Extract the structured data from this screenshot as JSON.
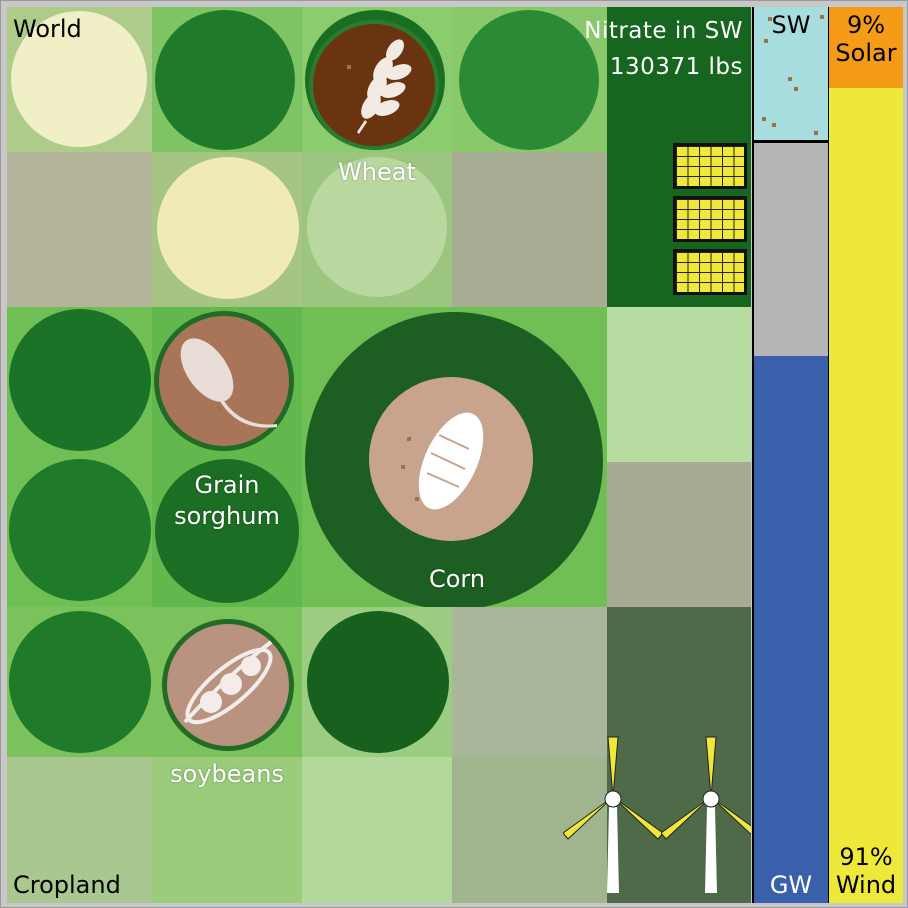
{
  "world_label": "World",
  "cropland_label": "Cropland",
  "nitrate": {
    "title": "Nitrate in SW",
    "value": "130371 lbs"
  },
  "crops": [
    {
      "name": "wheat",
      "label": "Wheat",
      "icon": "wheat-icon"
    },
    {
      "name": "sorghum",
      "label": "Grain\nsorghum",
      "icon": "sorghum-icon"
    },
    {
      "name": "corn",
      "label": "Corn",
      "icon": "corn-icon"
    },
    {
      "name": "soybeans",
      "label": "soybeans",
      "icon": "soybean-icon"
    }
  ],
  "water": {
    "sw_label": "SW",
    "gw_label": "GW"
  },
  "energy": {
    "solar_percent": 9,
    "solar_pct_text": "9%",
    "solar_label": "Solar",
    "wind_pct_text": "91%",
    "wind_label": "Wind"
  },
  "colors": {
    "solar": "#f59b17",
    "wind": "#ede83a",
    "surface_water": "#a8dde0",
    "groundwater": "#3a5fab",
    "wheat_icon": "#6b3410",
    "crop_icon": "#a87558",
    "corn_icon": "#c8a48e",
    "soy_icon": "#b99280"
  }
}
